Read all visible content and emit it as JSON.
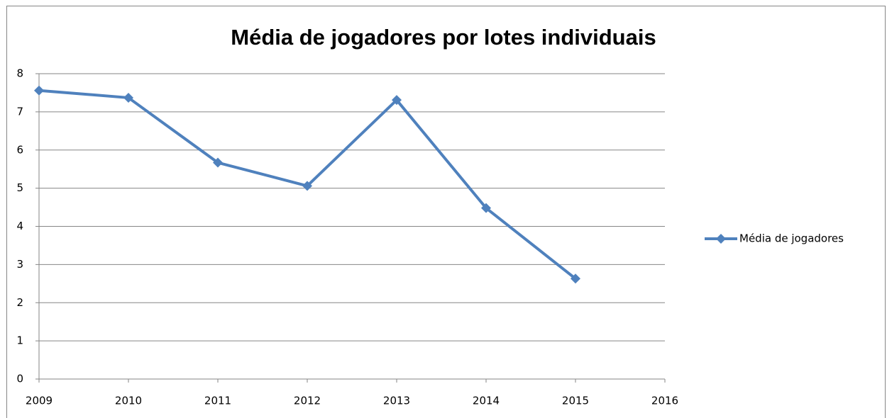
{
  "chart_data": {
    "type": "line",
    "title": "Média de jogadores por lotes individuais",
    "x": [
      2009,
      2010,
      2011,
      2012,
      2013,
      2014,
      2015
    ],
    "series": [
      {
        "name": "Média de jogadores",
        "color": "#4f81bd",
        "values": [
          7.56,
          7.37,
          5.67,
          5.06,
          7.31,
          4.48,
          2.63
        ]
      }
    ],
    "xlim": [
      2009,
      2016
    ],
    "xticks": [
      2009,
      2010,
      2011,
      2012,
      2013,
      2014,
      2015,
      2016
    ],
    "ylim": [
      0,
      8
    ],
    "yticks": [
      0,
      1,
      2,
      3,
      4,
      5,
      6,
      7,
      8
    ],
    "grid": true,
    "legend": "right",
    "marker": "diamond"
  }
}
